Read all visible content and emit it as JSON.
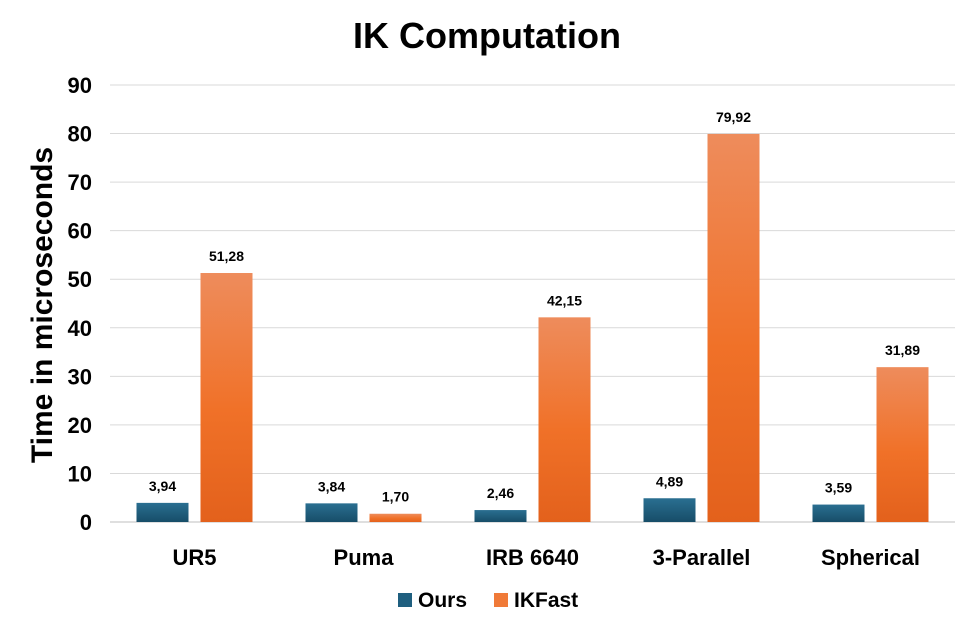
{
  "chart_data": {
    "type": "bar",
    "title": "IK Computation",
    "xlabel": "",
    "ylabel": "Time in microseconds",
    "categories": [
      "UR5",
      "Puma",
      "IRB 6640",
      "3-Parallel",
      "Spherical"
    ],
    "series": [
      {
        "name": "Ours",
        "values": [
          3.94,
          3.84,
          2.46,
          4.89,
          3.59
        ],
        "labels": [
          "3,94",
          "3,84",
          "2,46",
          "4,89",
          "3,59"
        ],
        "color": "#1f5f7f"
      },
      {
        "name": "IKFast",
        "values": [
          51.28,
          1.7,
          42.15,
          79.92,
          31.89
        ],
        "labels": [
          "51,28",
          "1,70",
          "42,15",
          "79,92",
          "31,89"
        ],
        "color": "#f07a38"
      }
    ],
    "yticks": [
      0,
      10,
      20,
      30,
      40,
      50,
      60,
      70,
      80,
      90
    ],
    "ylim": [
      0,
      90
    ],
    "grid": true,
    "legend_position": "bottom"
  }
}
